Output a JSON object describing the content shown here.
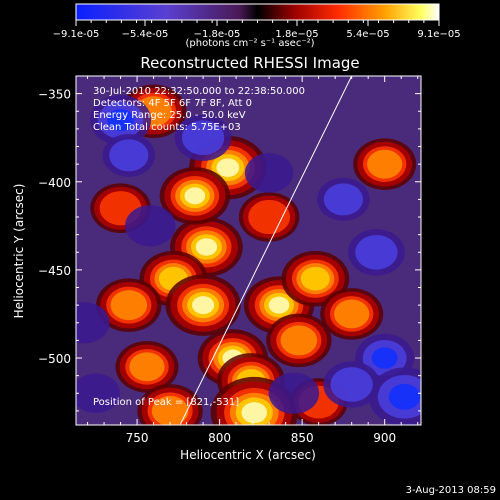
{
  "chart_data": {
    "type": "heatmap",
    "title": "Reconstructed RHESSI Image",
    "xlabel": "Heliocentric X (arcsec)",
    "ylabel": "Heliocentric Y (arcsec)",
    "xlim": [
      713,
      922
    ],
    "ylim": [
      -538,
      -340
    ],
    "xticks": [
      750,
      800,
      850,
      900
    ],
    "yticks": [
      -350,
      -400,
      -450,
      -500
    ],
    "colorbar": {
      "ticks": [
        "-9.1e-05",
        "-5.4e-05",
        "-1.8e-05",
        "1.8e-05",
        "5.4e-05",
        "9.1e-05"
      ],
      "min": -9.1e-05,
      "max": 9.1e-05,
      "unit": "(photons cm⁻² s⁻¹ asec⁻²)"
    },
    "info_lines": [
      "30-Jul-2010 22:32:50.000 to 22:38:50.000",
      "Detectors: 4F 5F 6F 7F 8F, Att 0",
      "Energy Range: 25.0 - 50.0 keV",
      "Clean     Total counts: 5.75E+03"
    ],
    "peak_label": "Position of Peak = [821,-531]",
    "peak": [
      821,
      -531
    ],
    "limb_line": [
      [
        776,
        -538
      ],
      [
        880,
        -340
      ]
    ],
    "sources": [
      {
        "x": 792,
        "y": -437,
        "level": 0.65
      },
      {
        "x": 772,
        "y": -455,
        "level": 0.55
      },
      {
        "x": 790,
        "y": -470,
        "level": 0.7
      },
      {
        "x": 808,
        "y": -500,
        "level": 0.6
      },
      {
        "x": 836,
        "y": -470,
        "level": 0.6
      },
      {
        "x": 858,
        "y": -455,
        "level": 0.55
      },
      {
        "x": 848,
        "y": -490,
        "level": 0.5
      },
      {
        "x": 819,
        "y": -513,
        "level": 0.55
      },
      {
        "x": 805,
        "y": -392,
        "level": 0.75
      },
      {
        "x": 785,
        "y": -408,
        "level": 0.6
      },
      {
        "x": 760,
        "y": -360,
        "level": 0.5
      },
      {
        "x": 745,
        "y": -470,
        "level": 0.5
      },
      {
        "x": 756,
        "y": -505,
        "level": 0.45
      },
      {
        "x": 770,
        "y": -530,
        "level": 0.5
      },
      {
        "x": 821,
        "y": -531,
        "level": 0.95
      },
      {
        "x": 900,
        "y": -390,
        "level": 0.45
      },
      {
        "x": 880,
        "y": -475,
        "level": 0.45
      },
      {
        "x": 860,
        "y": -525,
        "level": 0.35
      },
      {
        "x": 740,
        "y": -415,
        "level": 0.4
      },
      {
        "x": 830,
        "y": -420,
        "level": 0.4
      },
      {
        "x": 740,
        "y": -365,
        "level": -0.6
      },
      {
        "x": 745,
        "y": -385,
        "level": -0.4
      },
      {
        "x": 790,
        "y": -375,
        "level": -0.5
      },
      {
        "x": 758,
        "y": -425,
        "level": -0.35
      },
      {
        "x": 900,
        "y": -500,
        "level": -0.55
      },
      {
        "x": 912,
        "y": -522,
        "level": -0.85
      },
      {
        "x": 880,
        "y": -515,
        "level": -0.5
      },
      {
        "x": 830,
        "y": -395,
        "level": -0.3
      },
      {
        "x": 895,
        "y": -440,
        "level": -0.5
      },
      {
        "x": 875,
        "y": -410,
        "level": -0.4
      },
      {
        "x": 725,
        "y": -520,
        "level": -0.3
      },
      {
        "x": 718,
        "y": -480,
        "level": -0.35
      },
      {
        "x": 845,
        "y": -520,
        "level": -0.35
      }
    ]
  },
  "footer": {
    "date": "3-Aug-2013 08:59"
  }
}
